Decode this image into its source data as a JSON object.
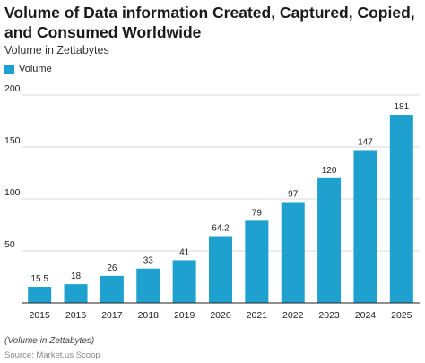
{
  "colors": {
    "bar": "#1ea1ce",
    "grid": "#d9d9d9",
    "axis": "#222222"
  },
  "chart_data": {
    "type": "bar",
    "title": "Volume of Data information Created, Captured, Copied, and Consumed Worldwide",
    "subtitle": "Volume in Zettabytes",
    "legend": {
      "position": "top-left",
      "entries": [
        "Volume"
      ]
    },
    "grid": true,
    "ylim": [
      0,
      200
    ],
    "yticks": [
      0,
      50,
      100,
      150,
      200
    ],
    "ytick_labels": [
      "",
      "50",
      "100",
      "150",
      "200"
    ],
    "categories": [
      "2015",
      "2016",
      "2017",
      "2018",
      "2019",
      "2020",
      "2021",
      "2022",
      "2023",
      "2024",
      "2025"
    ],
    "series": [
      {
        "name": "Volume",
        "values": [
          15.5,
          18,
          26,
          33,
          41,
          64.2,
          79,
          97,
          120,
          147,
          181
        ],
        "labels": [
          "15.5",
          "18",
          "26",
          "33",
          "41",
          "64.2",
          "79",
          "97",
          "120",
          "147",
          "181"
        ]
      }
    ],
    "footnote": "(Volume in Zettabytes)",
    "source": "Source: Market.us Scoop"
  }
}
